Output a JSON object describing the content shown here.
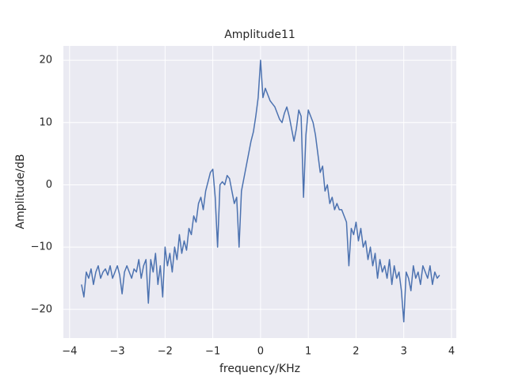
{
  "chart_data": {
    "type": "line",
    "title": "Amplitude11",
    "x_label": "frequency/KHz",
    "y_label": "Amplitude/dB",
    "x": [
      -3.75,
      -3.7,
      -3.65,
      -3.6,
      -3.55,
      -3.5,
      -3.45,
      -3.4,
      -3.35,
      -3.3,
      -3.25,
      -3.2,
      -3.15,
      -3.1,
      -3.05,
      -3.0,
      -2.95,
      -2.9,
      -2.85,
      -2.8,
      -2.75,
      -2.7,
      -2.65,
      -2.6,
      -2.55,
      -2.5,
      -2.45,
      -2.4,
      -2.35,
      -2.3,
      -2.25,
      -2.2,
      -2.15,
      -2.1,
      -2.05,
      -2.0,
      -1.95,
      -1.9,
      -1.85,
      -1.8,
      -1.75,
      -1.7,
      -1.65,
      -1.6,
      -1.55,
      -1.5,
      -1.45,
      -1.4,
      -1.35,
      -1.3,
      -1.25,
      -1.2,
      -1.15,
      -1.1,
      -1.05,
      -1.0,
      -0.95,
      -0.9,
      -0.85,
      -0.8,
      -0.75,
      -0.7,
      -0.65,
      -0.6,
      -0.55,
      -0.5,
      -0.45,
      -0.4,
      -0.35,
      -0.3,
      -0.25,
      -0.2,
      -0.15,
      -0.1,
      -0.05,
      0.0,
      0.05,
      0.1,
      0.15,
      0.2,
      0.25,
      0.3,
      0.35,
      0.4,
      0.45,
      0.5,
      0.55,
      0.6,
      0.65,
      0.7,
      0.75,
      0.8,
      0.85,
      0.9,
      0.95,
      1.0,
      1.05,
      1.1,
      1.15,
      1.2,
      1.25,
      1.3,
      1.35,
      1.4,
      1.45,
      1.5,
      1.55,
      1.6,
      1.65,
      1.7,
      1.75,
      1.8,
      1.85,
      1.9,
      1.95,
      2.0,
      2.05,
      2.1,
      2.15,
      2.2,
      2.25,
      2.3,
      2.35,
      2.4,
      2.45,
      2.5,
      2.55,
      2.6,
      2.65,
      2.7,
      2.75,
      2.8,
      2.85,
      2.9,
      2.95,
      3.0,
      3.05,
      3.1,
      3.15,
      3.2,
      3.25,
      3.3,
      3.35,
      3.4,
      3.45,
      3.5,
      3.55,
      3.6,
      3.65,
      3.7,
      3.75
    ],
    "series": [
      {
        "name": "Amplitude11",
        "color": "#4c72b0",
        "values": [
          -16,
          -18,
          -14,
          -15,
          -13.5,
          -16,
          -14,
          -13,
          -15,
          -14,
          -13.5,
          -14.5,
          -13,
          -15,
          -14,
          -13,
          -14.5,
          -17.5,
          -14,
          -13,
          -14,
          -15,
          -13.5,
          -14,
          -12,
          -15,
          -13,
          -12,
          -19,
          -12,
          -14,
          -11,
          -16,
          -13,
          -18,
          -10,
          -13,
          -11,
          -14,
          -10,
          -12,
          -8,
          -11,
          -9,
          -10.5,
          -7,
          -8,
          -5,
          -6,
          -3,
          -2,
          -4,
          -1,
          0.5,
          2,
          2.5,
          -2,
          -10,
          0,
          0.5,
          0,
          1.5,
          1,
          -1,
          -3,
          -2,
          -10,
          -1,
          1,
          3,
          5,
          7,
          8.5,
          11,
          14,
          20,
          14,
          15.5,
          14.5,
          13.5,
          13,
          12.5,
          11.5,
          10.5,
          10,
          11.5,
          12.5,
          11,
          9,
          7,
          9,
          12,
          11,
          -2,
          8,
          12,
          11,
          10,
          8,
          5,
          2,
          3,
          -1,
          0,
          -3,
          -2,
          -4,
          -3,
          -4,
          -4,
          -5,
          -6,
          -13,
          -7,
          -8,
          -6,
          -9,
          -7,
          -10,
          -9,
          -12,
          -10,
          -13,
          -11,
          -15,
          -12,
          -14,
          -13,
          -15,
          -12,
          -16,
          -13,
          -15,
          -14,
          -17,
          -22,
          -14,
          -15,
          -17,
          -13,
          -15,
          -14,
          -16,
          -13,
          -14,
          -15,
          -13,
          -16,
          -14,
          -15,
          -14.5
        ]
      }
    ],
    "xlim": [
      -4.13,
      4.1
    ],
    "ylim": [
      -24.6,
      22.3
    ],
    "xticks": [
      {
        "value": -4,
        "label": "−4"
      },
      {
        "value": -3,
        "label": "−3"
      },
      {
        "value": -2,
        "label": "−2"
      },
      {
        "value": -1,
        "label": "−1"
      },
      0,
      1,
      2,
      3,
      4
    ],
    "yticks": [
      {
        "value": -20,
        "label": "−20"
      },
      {
        "value": -10,
        "label": "−10"
      },
      0,
      10,
      20
    ],
    "grid": true
  }
}
